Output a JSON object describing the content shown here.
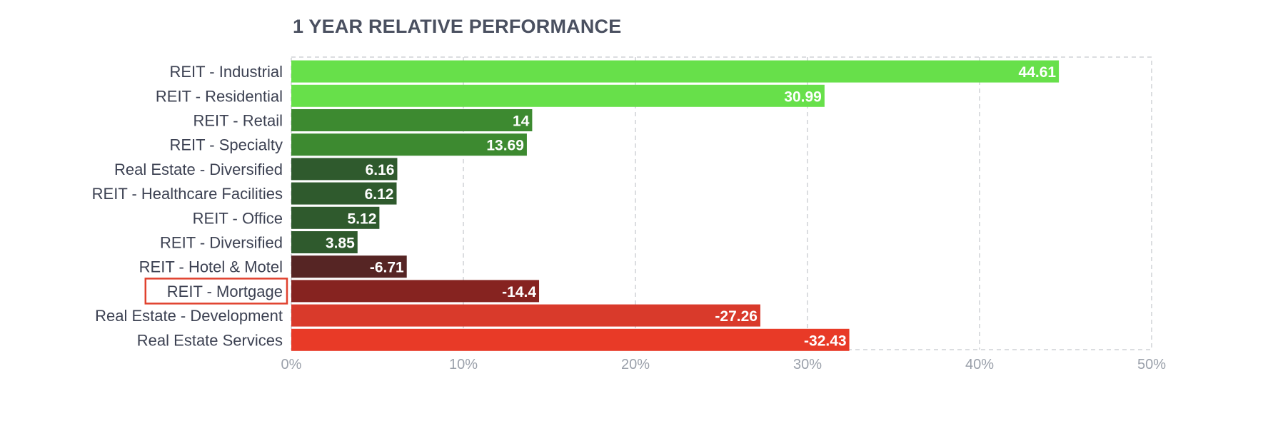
{
  "chart_data": {
    "type": "bar",
    "orientation": "horizontal",
    "title": "1 YEAR RELATIVE PERFORMANCE",
    "xlabel": "",
    "ylabel": "",
    "xlim": [
      0,
      50
    ],
    "x_ticks": [
      "0%",
      "10%",
      "20%",
      "30%",
      "40%",
      "50%"
    ],
    "grid": true,
    "highlighted_category": "REIT - Mortgage",
    "highlight_color": "#e0412e",
    "bar_value_basis": "absolute value",
    "categories": [
      "REIT - Industrial",
      "REIT - Residential",
      "REIT - Retail",
      "REIT - Specialty",
      "Real Estate - Diversified",
      "REIT - Healthcare Facilities",
      "REIT - Office",
      "REIT - Diversified",
      "REIT - Hotel & Motel",
      "REIT - Mortgage",
      "Real Estate - Development",
      "Real Estate Services"
    ],
    "values": [
      44.61,
      30.99,
      14,
      13.69,
      6.16,
      6.12,
      5.12,
      3.85,
      -6.71,
      -14.4,
      -27.26,
      -32.43
    ],
    "value_labels": [
      "44.61",
      "30.99",
      "14",
      "13.69",
      "6.16",
      "6.12",
      "5.12",
      "3.85",
      "-6.71",
      "-14.4",
      "-27.26",
      "-32.43"
    ],
    "colors": [
      "#67e04a",
      "#67e04a",
      "#3d8a30",
      "#3d8a30",
      "#2f5a2d",
      "#2f5a2d",
      "#2f5a2d",
      "#2f5a2d",
      "#562524",
      "#862320",
      "#d93a2b",
      "#e83a27"
    ]
  }
}
